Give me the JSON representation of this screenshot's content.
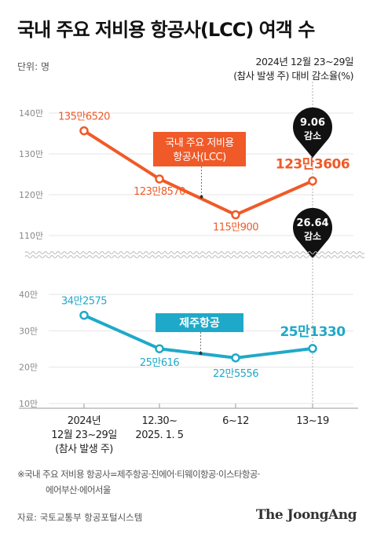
{
  "title": "국내 주요 저비용 항공사(LCC) 여객 수",
  "unit_label": "단위: 명",
  "note": {
    "line1": "2024년 12월 23~29일",
    "line2": "(참사 발생 주) 대비 감소율(%)"
  },
  "chart_data": [
    {
      "type": "line",
      "title": "",
      "series_label": "국내 주요 저비용 항공사(LCC)",
      "series_label_lines": [
        "국내 주요 저비용",
        "항공사(LCC)"
      ],
      "color": "#f05a28",
      "ylim": [
        110,
        140
      ],
      "yticks": [
        110,
        120,
        130,
        140
      ],
      "ytick_labels": [
        "110만",
        "120만",
        "130만",
        "140만"
      ],
      "values": [
        1356520,
        1238570,
        1150900,
        1233606
      ],
      "value_labels": [
        "135만6520",
        "123만8570",
        "115만900",
        "123만3606"
      ],
      "callout": {
        "value": "9.06",
        "text": "감소"
      }
    },
    {
      "type": "line",
      "title": "",
      "series_label": "제주항공",
      "color": "#1fa9c9",
      "ylim": [
        10,
        40
      ],
      "yticks": [
        10,
        20,
        30,
        40
      ],
      "ytick_labels": [
        "10만",
        "20만",
        "30만",
        "40만"
      ],
      "values": [
        342575,
        250616,
        225556,
        251330
      ],
      "value_labels": [
        "34만2575",
        "25만616",
        "22만5556",
        "25만1330"
      ],
      "callout": {
        "value": "26.64",
        "text": "감소"
      }
    }
  ],
  "x_labels": [
    [
      "2024년",
      "12월 23~29일",
      "(참사 발생 주)"
    ],
    [
      "12.30~",
      "2025. 1. 5"
    ],
    [
      "6~12"
    ],
    [
      "13~19"
    ]
  ],
  "footnote": {
    "line1": "※국내 주요 저비용 항공사=제주항공·진에어·티웨이항공·이스타항공·",
    "line2": "에어부산·에어서울"
  },
  "source": "자료: 국토교통부 항공포털시스템",
  "logo": "The JoongAng",
  "colors": {
    "lcc": "#f05a28",
    "jeju": "#1fa9c9",
    "callout": "#111111"
  }
}
